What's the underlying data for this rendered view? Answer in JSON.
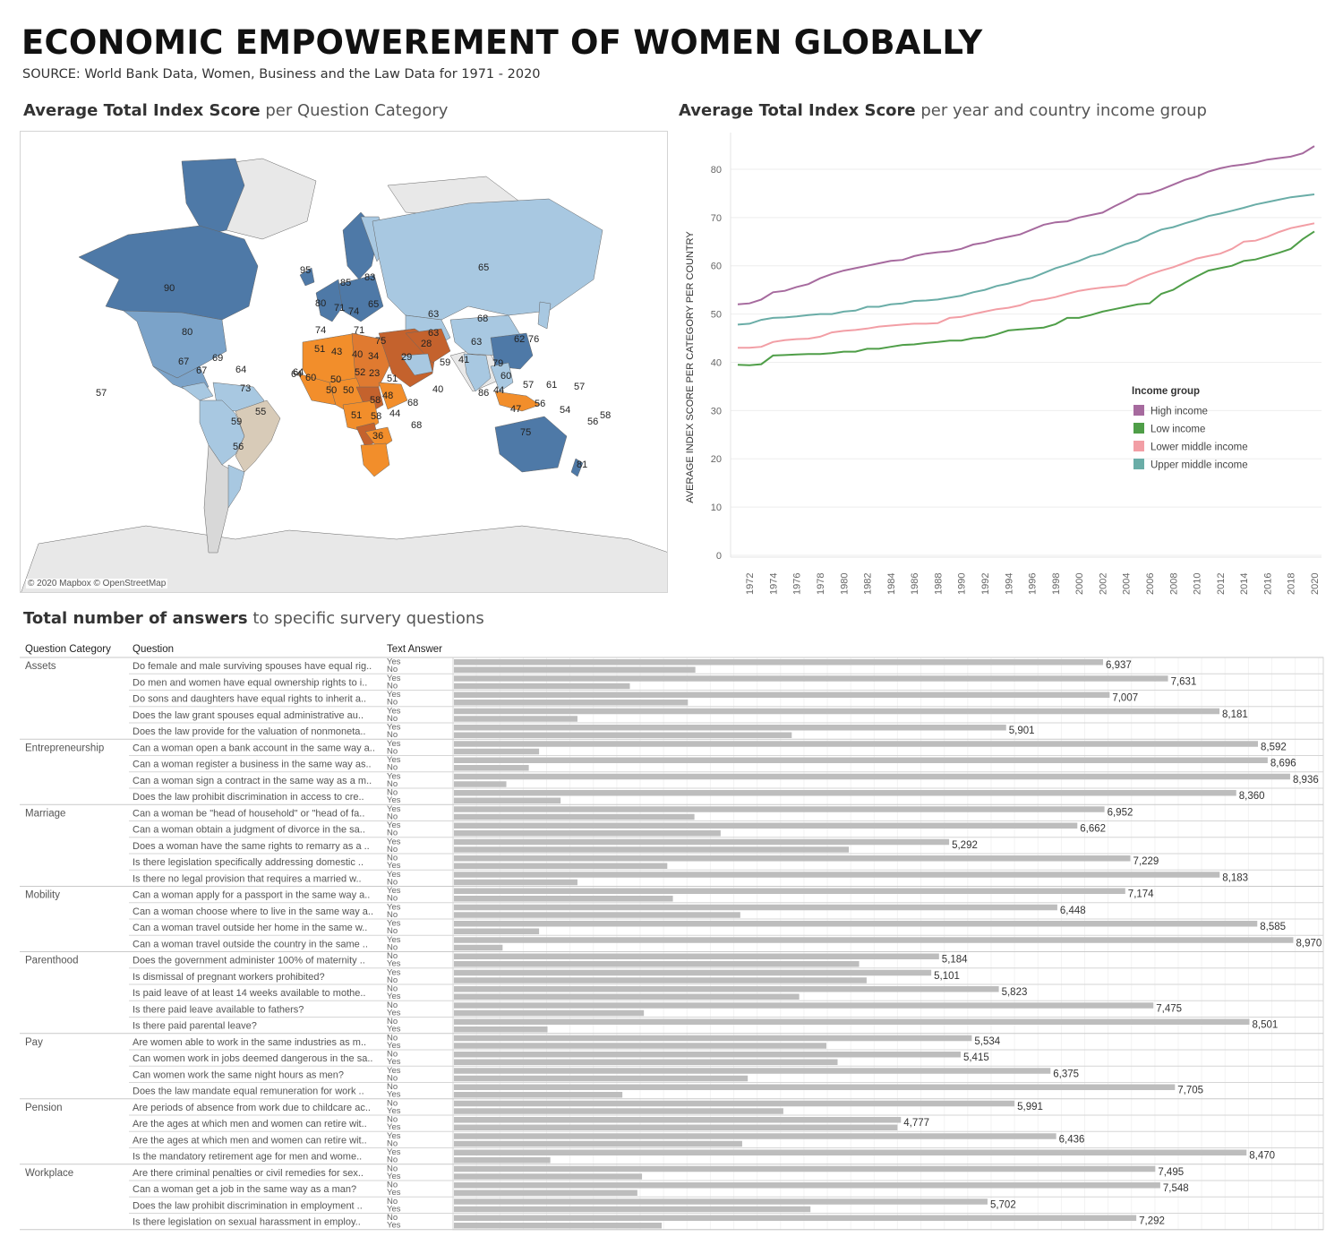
{
  "header": {
    "title": "ECONOMIC EMPOWEREMENT OF WOMEN GLOBALLY",
    "subtitle": "SOURCE: World Bank Data, Women, Business and the Law Data for 1971 - 2020"
  },
  "map": {
    "title_bold": "Average Total Index Score",
    "title_rest": " per Question Category",
    "credit": "© 2020 Mapbox © OpenStreetMap",
    "labels": [
      "90",
      "80",
      "67",
      "69",
      "64",
      "57",
      "67",
      "64",
      "73",
      "59",
      "55",
      "56",
      "95",
      "85",
      "83",
      "80",
      "71",
      "74",
      "65",
      "74",
      "71",
      "75",
      "63",
      "65",
      "63",
      "68",
      "63",
      "28",
      "62",
      "76",
      "51",
      "43",
      "40",
      "34",
      "29",
      "59",
      "41",
      "79",
      "64",
      "60",
      "50",
      "52",
      "23",
      "51",
      "50",
      "50",
      "58",
      "48",
      "40",
      "60",
      "51",
      "58",
      "44",
      "68",
      "36",
      "68",
      "86",
      "44",
      "57",
      "61",
      "57",
      "47",
      "56",
      "54",
      "56",
      "58",
      "75",
      "81"
    ],
    "colors": {
      "high": "#4e79a7",
      "mid_high": "#7ba3c9",
      "light": "#a8c8e1",
      "neutral": "#d8cbb8",
      "orange": "#f28e2b",
      "dark_orange": "#e07a30",
      "brown": "#c4622d"
    }
  },
  "chart_data": [
    {
      "type": "line",
      "title": "Average Total Index Score per year and country income group",
      "title_bold": "Average Total Index Score",
      "title_rest": " per year and country income group",
      "ylabel": "AVERAGE INDEX SCORE PER CATEGORY PER COUNTRY",
      "xlabel": "",
      "ylim": [
        0,
        85
      ],
      "yticks": [
        0,
        10,
        20,
        30,
        40,
        50,
        60,
        70,
        80
      ],
      "grid": true,
      "legend_title": "Income group",
      "legend_position": "right",
      "x": [
        1971,
        1972,
        1973,
        1974,
        1975,
        1976,
        1977,
        1978,
        1979,
        1980,
        1981,
        1982,
        1983,
        1984,
        1985,
        1986,
        1987,
        1988,
        1989,
        1990,
        1991,
        1992,
        1993,
        1994,
        1995,
        1996,
        1997,
        1998,
        1999,
        2000,
        2001,
        2002,
        2003,
        2004,
        2005,
        2006,
        2007,
        2008,
        2009,
        2010,
        2011,
        2012,
        2013,
        2014,
        2015,
        2016,
        2017,
        2018,
        2019,
        2020
      ],
      "xtick_labels": [
        "1972",
        "1974",
        "1976",
        "1978",
        "1980",
        "1982",
        "1984",
        "1986",
        "1988",
        "1990",
        "1992",
        "1994",
        "1996",
        "1998",
        "2000",
        "2002",
        "2004",
        "2006",
        "2008",
        "2010",
        "2012",
        "2014",
        "2016",
        "2018",
        "2020"
      ],
      "series": [
        {
          "name": "High income",
          "color": "#a66a9e",
          "values": [
            52,
            52.2,
            53,
            54.5,
            54.8,
            55.6,
            56.2,
            57.4,
            58.3,
            59,
            59.5,
            60,
            60.5,
            61,
            61.2,
            62,
            62.5,
            62.8,
            63,
            63.5,
            64.4,
            64.8,
            65.5,
            66,
            66.5,
            67.5,
            68.5,
            69,
            69.2,
            70,
            70.5,
            71,
            72.3,
            73.5,
            74.8,
            75,
            75.8,
            76.8,
            77.8,
            78.5,
            79.5,
            80.2,
            80.7,
            81,
            81.4,
            82,
            82.3,
            82.6,
            83.3,
            84.8
          ]
        },
        {
          "name": "Low income",
          "color": "#4f9e48",
          "values": [
            39.5,
            39.4,
            39.6,
            41.4,
            41.5,
            41.6,
            41.7,
            41.7,
            41.9,
            42.2,
            42.2,
            42.8,
            42.8,
            43.2,
            43.6,
            43.7,
            44,
            44.2,
            44.5,
            44.5,
            45,
            45.2,
            45.8,
            46.6,
            46.8,
            47,
            47.2,
            47.9,
            49.2,
            49.2,
            49.8,
            50.5,
            51,
            51.5,
            52,
            52.2,
            54.2,
            55,
            56.5,
            57.8,
            59,
            59.5,
            60,
            61,
            61.3,
            62,
            62.7,
            63.5,
            65.5,
            67.1
          ]
        },
        {
          "name": "Lower middle income",
          "color": "#f29ea5",
          "values": [
            43,
            43,
            43.2,
            44.2,
            44.6,
            44.8,
            44.9,
            45.3,
            46.2,
            46.5,
            46.7,
            47,
            47.4,
            47.6,
            47.8,
            48,
            48,
            48.1,
            49.2,
            49.4,
            50,
            50.5,
            51,
            51.3,
            51.8,
            52.7,
            53,
            53.5,
            54.2,
            54.8,
            55.2,
            55.5,
            55.7,
            56,
            57.2,
            58.2,
            59,
            59.7,
            60.6,
            61.5,
            62,
            62.5,
            63.5,
            65,
            65.2,
            66,
            67,
            67.8,
            68.3,
            68.8
          ]
        },
        {
          "name": "Upper middle income",
          "color": "#6aada7",
          "values": [
            47.8,
            48,
            48.8,
            49.2,
            49.3,
            49.5,
            49.8,
            50,
            50,
            50.5,
            50.7,
            51.5,
            51.5,
            52,
            52.2,
            52.7,
            52.8,
            53,
            53.4,
            53.8,
            54.5,
            55,
            55.8,
            56.3,
            57,
            57.5,
            58.5,
            59.5,
            60.2,
            61,
            62,
            62.5,
            63.5,
            64.5,
            65.2,
            66.5,
            67.5,
            68,
            68.8,
            69.5,
            70.3,
            70.8,
            71.4,
            72,
            72.7,
            73.2,
            73.7,
            74.2,
            74.5,
            74.8
          ]
        }
      ]
    },
    {
      "type": "bar",
      "title": "Total number of answers to specific survery questions",
      "title_bold": "Total number of answers",
      "title_rest": " to specific survery questions",
      "col_headers": [
        "Question Category",
        "Question",
        "Text Answer"
      ],
      "xlim": [
        0,
        9300
      ],
      "grid": true,
      "categories": [
        {
          "name": "Assets",
          "questions": [
            {
              "q": "Do female and male surviving spouses have equal rig..",
              "a1": "Yes",
              "a2": "No",
              "v1": 6937,
              "v2": 2580
            },
            {
              "q": "Do men and women have equal ownership rights to i..",
              "a1": "Yes",
              "a2": "No",
              "v1": 7631,
              "v2": 1880
            },
            {
              "q": "Do sons and daughters have equal rights to inherit a..",
              "a1": "Yes",
              "a2": "No",
              "v1": 7007,
              "v2": 2500
            },
            {
              "q": "Does the law grant spouses equal administrative au..",
              "a1": "Yes",
              "a2": "No",
              "v1": 8181,
              "v2": 1320
            },
            {
              "q": "Does the law provide for the valuation of nonmoneta..",
              "a1": "Yes",
              "a2": "No",
              "v1": 5901,
              "v2": 3610
            }
          ]
        },
        {
          "name": "Entrepreneurship",
          "questions": [
            {
              "q": "Can a woman open a bank account in the same way a..",
              "a1": "Yes",
              "a2": "No",
              "v1": 8592,
              "v2": 910
            },
            {
              "q": "Can a woman register a business in the same way as..",
              "a1": "Yes",
              "a2": "No",
              "v1": 8696,
              "v2": 800
            },
            {
              "q": "Can a woman sign a contract in the same way as a m..",
              "a1": "Yes",
              "a2": "No",
              "v1": 8936,
              "v2": 560
            },
            {
              "q": "Does the law prohibit discrimination in access to cre..",
              "a1": "No",
              "a2": "Yes",
              "v1": 8360,
              "v2": 1140
            }
          ]
        },
        {
          "name": "Marriage",
          "questions": [
            {
              "q": "Can a woman be \"head of household\" or \"head of fa..",
              "a1": "Yes",
              "a2": "No",
              "v1": 6952,
              "v2": 2570
            },
            {
              "q": "Can a woman obtain a judgment of divorce in the sa..",
              "a1": "Yes",
              "a2": "No",
              "v1": 6662,
              "v2": 2850
            },
            {
              "q": "Does a woman have the same rights to remarry as a ..",
              "a1": "Yes",
              "a2": "No",
              "v1": 5292,
              "v2": 4220
            },
            {
              "q": "Is there legislation specifically addressing domestic ..",
              "a1": "No",
              "a2": "Yes",
              "v1": 7229,
              "v2": 2280
            },
            {
              "q": "Is there no legal provision that requires a married w..",
              "a1": "Yes",
              "a2": "No",
              "v1": 8183,
              "v2": 1320
            }
          ]
        },
        {
          "name": "Mobility",
          "questions": [
            {
              "q": "Can a woman apply for a passport in the same way a..",
              "a1": "Yes",
              "a2": "No",
              "v1": 7174,
              "v2": 2340
            },
            {
              "q": "Can a woman choose where to live in the same way a..",
              "a1": "Yes",
              "a2": "No",
              "v1": 6448,
              "v2": 3060
            },
            {
              "q": "Can a woman travel outside her home in the same w..",
              "a1": "Yes",
              "a2": "No",
              "v1": 8585,
              "v2": 910
            },
            {
              "q": "Can a woman travel outside the country in the same ..",
              "a1": "Yes",
              "a2": "No",
              "v1": 8970,
              "v2": 520
            }
          ]
        },
        {
          "name": "Parenthood",
          "questions": [
            {
              "q": "Does the government administer 100% of maternity ..",
              "a1": "No",
              "a2": "Yes",
              "v1": 5184,
              "v2": 4330
            },
            {
              "q": "Is dismissal of pregnant workers prohibited?",
              "a1": "Yes",
              "a2": "No",
              "v1": 5101,
              "v2": 4410
            },
            {
              "q": "Is paid leave of at least 14 weeks available to mothe..",
              "a1": "No",
              "a2": "Yes",
              "v1": 5823,
              "v2": 3690
            },
            {
              "q": "Is there paid leave available to fathers?",
              "a1": "No",
              "a2": "Yes",
              "v1": 7475,
              "v2": 2030
            },
            {
              "q": "Is there paid parental leave?",
              "a1": "No",
              "a2": "Yes",
              "v1": 8501,
              "v2": 1000
            }
          ]
        },
        {
          "name": "Pay",
          "questions": [
            {
              "q": "Are women able to work in the same industries as m..",
              "a1": "No",
              "a2": "Yes",
              "v1": 5534,
              "v2": 3980
            },
            {
              "q": "Can women work in jobs deemed dangerous in the sa..",
              "a1": "No",
              "a2": "Yes",
              "v1": 5415,
              "v2": 4100
            },
            {
              "q": "Can women work the same night hours as men?",
              "a1": "Yes",
              "a2": "No",
              "v1": 6375,
              "v2": 3140
            },
            {
              "q": "Does the law mandate equal remuneration for work ..",
              "a1": "No",
              "a2": "Yes",
              "v1": 7705,
              "v2": 1800
            }
          ]
        },
        {
          "name": "Pension",
          "questions": [
            {
              "q": "Are periods of absence from work due to childcare ac..",
              "a1": "No",
              "a2": "Yes",
              "v1": 5991,
              "v2": 3520
            },
            {
              "q": "Are the ages at which men and women can retire wit..",
              "a1": "No",
              "a2": "Yes",
              "v1": 4777,
              "v2": 4740
            },
            {
              "q": "Are the ages at which men and women can retire wit..",
              "a1": "Yes",
              "a2": "No",
              "v1": 6436,
              "v2": 3080
            },
            {
              "q": "Is the mandatory retirement age for men and wome..",
              "a1": "Yes",
              "a2": "No",
              "v1": 8470,
              "v2": 1030
            }
          ]
        },
        {
          "name": "Workplace",
          "questions": [
            {
              "q": "Are there criminal penalties or civil remedies for sex..",
              "a1": "No",
              "a2": "Yes",
              "v1": 7495,
              "v2": 2010
            },
            {
              "q": "Can a woman get a job in the same way as a man?",
              "a1": "No",
              "a2": "Yes",
              "v1": 7548,
              "v2": 1960
            },
            {
              "q": "Does the law prohibit discrimination in employment ..",
              "a1": "No",
              "a2": "Yes",
              "v1": 5702,
              "v2": 3810
            },
            {
              "q": "Is there legislation on sexual harassment in employ..",
              "a1": "No",
              "a2": "Yes",
              "v1": 7292,
              "v2": 2220
            }
          ]
        }
      ]
    }
  ]
}
